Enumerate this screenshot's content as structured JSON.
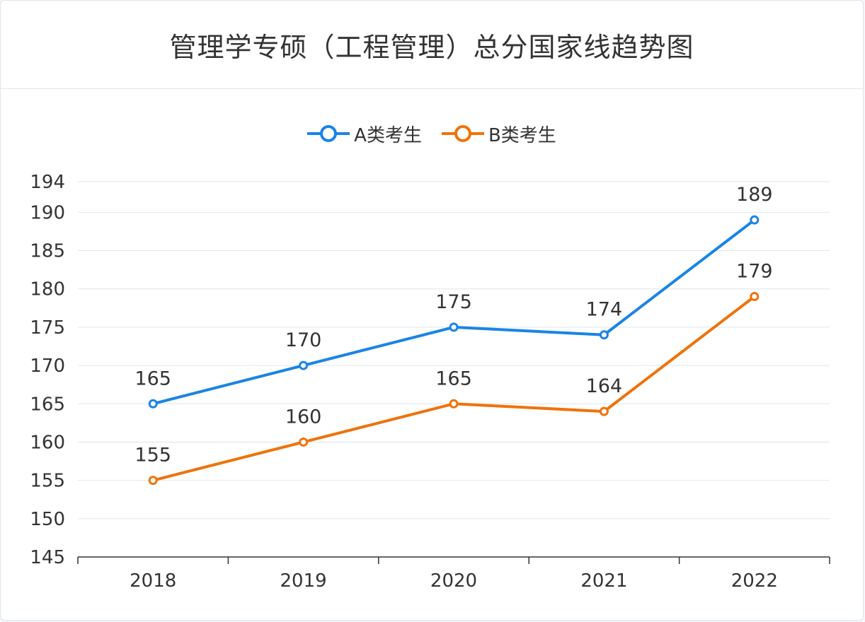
{
  "chart_data": {
    "type": "line",
    "title": "管理学专硕（工程管理）总分国家线趋势图",
    "categories": [
      "2018",
      "2019",
      "2020",
      "2021",
      "2022"
    ],
    "series": [
      {
        "name": "A类考生",
        "color": "#1a84e6",
        "values": [
          165,
          170,
          175,
          174,
          189
        ]
      },
      {
        "name": "B类考生",
        "color": "#f0720a",
        "values": [
          155,
          160,
          165,
          164,
          179
        ]
      }
    ],
    "y_ticks": [
      145,
      150,
      155,
      160,
      165,
      170,
      175,
      180,
      185,
      190,
      194
    ],
    "ylim": [
      145,
      194
    ],
    "grid": true,
    "legend": "top-center",
    "data_labels": true
  }
}
